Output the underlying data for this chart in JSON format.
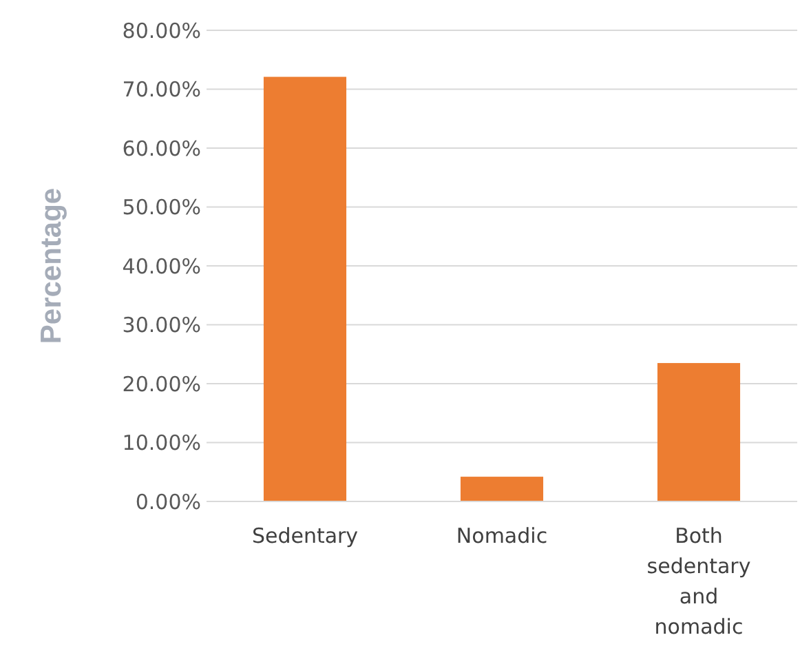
{
  "chart_data": {
    "type": "bar",
    "ylabel": "Percentage",
    "categories": [
      "Sedentary",
      "Nomadic",
      "Both sedentary and nomadic"
    ],
    "values": [
      72.1,
      4.2,
      23.5
    ],
    "color": "#ed7d31",
    "ylim": [
      0,
      80
    ],
    "yticks": [
      {
        "value": 0,
        "label": "0.00%"
      },
      {
        "value": 10,
        "label": "10.00%"
      },
      {
        "value": 20,
        "label": "20.00%"
      },
      {
        "value": 30,
        "label": "30.00%"
      },
      {
        "value": 40,
        "label": "40.00%"
      },
      {
        "value": 50,
        "label": "50.00%"
      },
      {
        "value": 60,
        "label": "60.00%"
      },
      {
        "value": 70,
        "label": "70.00%"
      },
      {
        "value": 80,
        "label": "80.00%"
      }
    ],
    "grid": "y"
  }
}
